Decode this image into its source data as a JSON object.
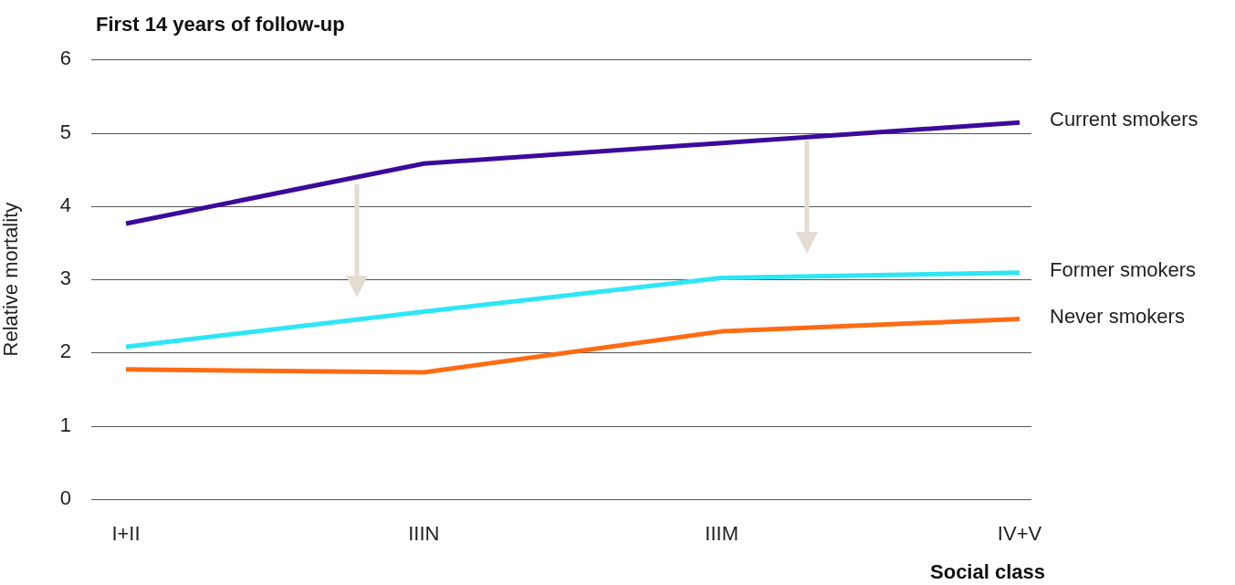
{
  "chart_data": {
    "type": "line",
    "title": "First 14 years of follow-up",
    "xlabel": "Social class",
    "ylabel": "Relative mortality",
    "categories": [
      "I+II",
      "IIIN",
      "IIIM",
      "IV+V"
    ],
    "series": [
      {
        "name": "Current smokers",
        "color": "#3c0a9b",
        "values": [
          3.76,
          4.58,
          4.86,
          5.14
        ]
      },
      {
        "name": "Former smokers",
        "color": "#2ee6f5",
        "values": [
          2.08,
          2.56,
          3.02,
          3.09
        ]
      },
      {
        "name": "Never smokers",
        "color": "#ff6b13",
        "values": [
          1.77,
          1.73,
          2.29,
          2.46
        ]
      }
    ],
    "ylim": [
      0,
      6
    ],
    "yticks": [
      0,
      1,
      2,
      3,
      4,
      5,
      6
    ],
    "grid": "y",
    "legend": false,
    "marker": "none",
    "line_style": "solid"
  }
}
